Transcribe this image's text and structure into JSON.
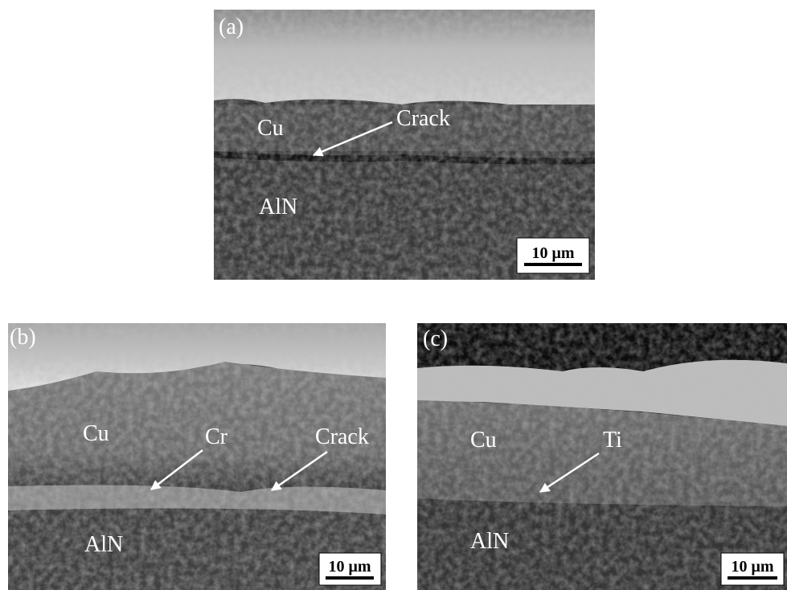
{
  "panels": [
    {
      "label": "(a)",
      "annotations": [
        "Cu",
        "Crack",
        "AlN"
      ],
      "scale_bar": "10 μm"
    },
    {
      "label": "(b)",
      "annotations": [
        "Cu",
        "Cr",
        "Crack",
        "AlN"
      ],
      "scale_bar": "10 μm"
    },
    {
      "label": "(c)",
      "annotations": [
        "Cu",
        "Ti",
        "AlN"
      ],
      "scale_bar": "10 μm"
    }
  ]
}
